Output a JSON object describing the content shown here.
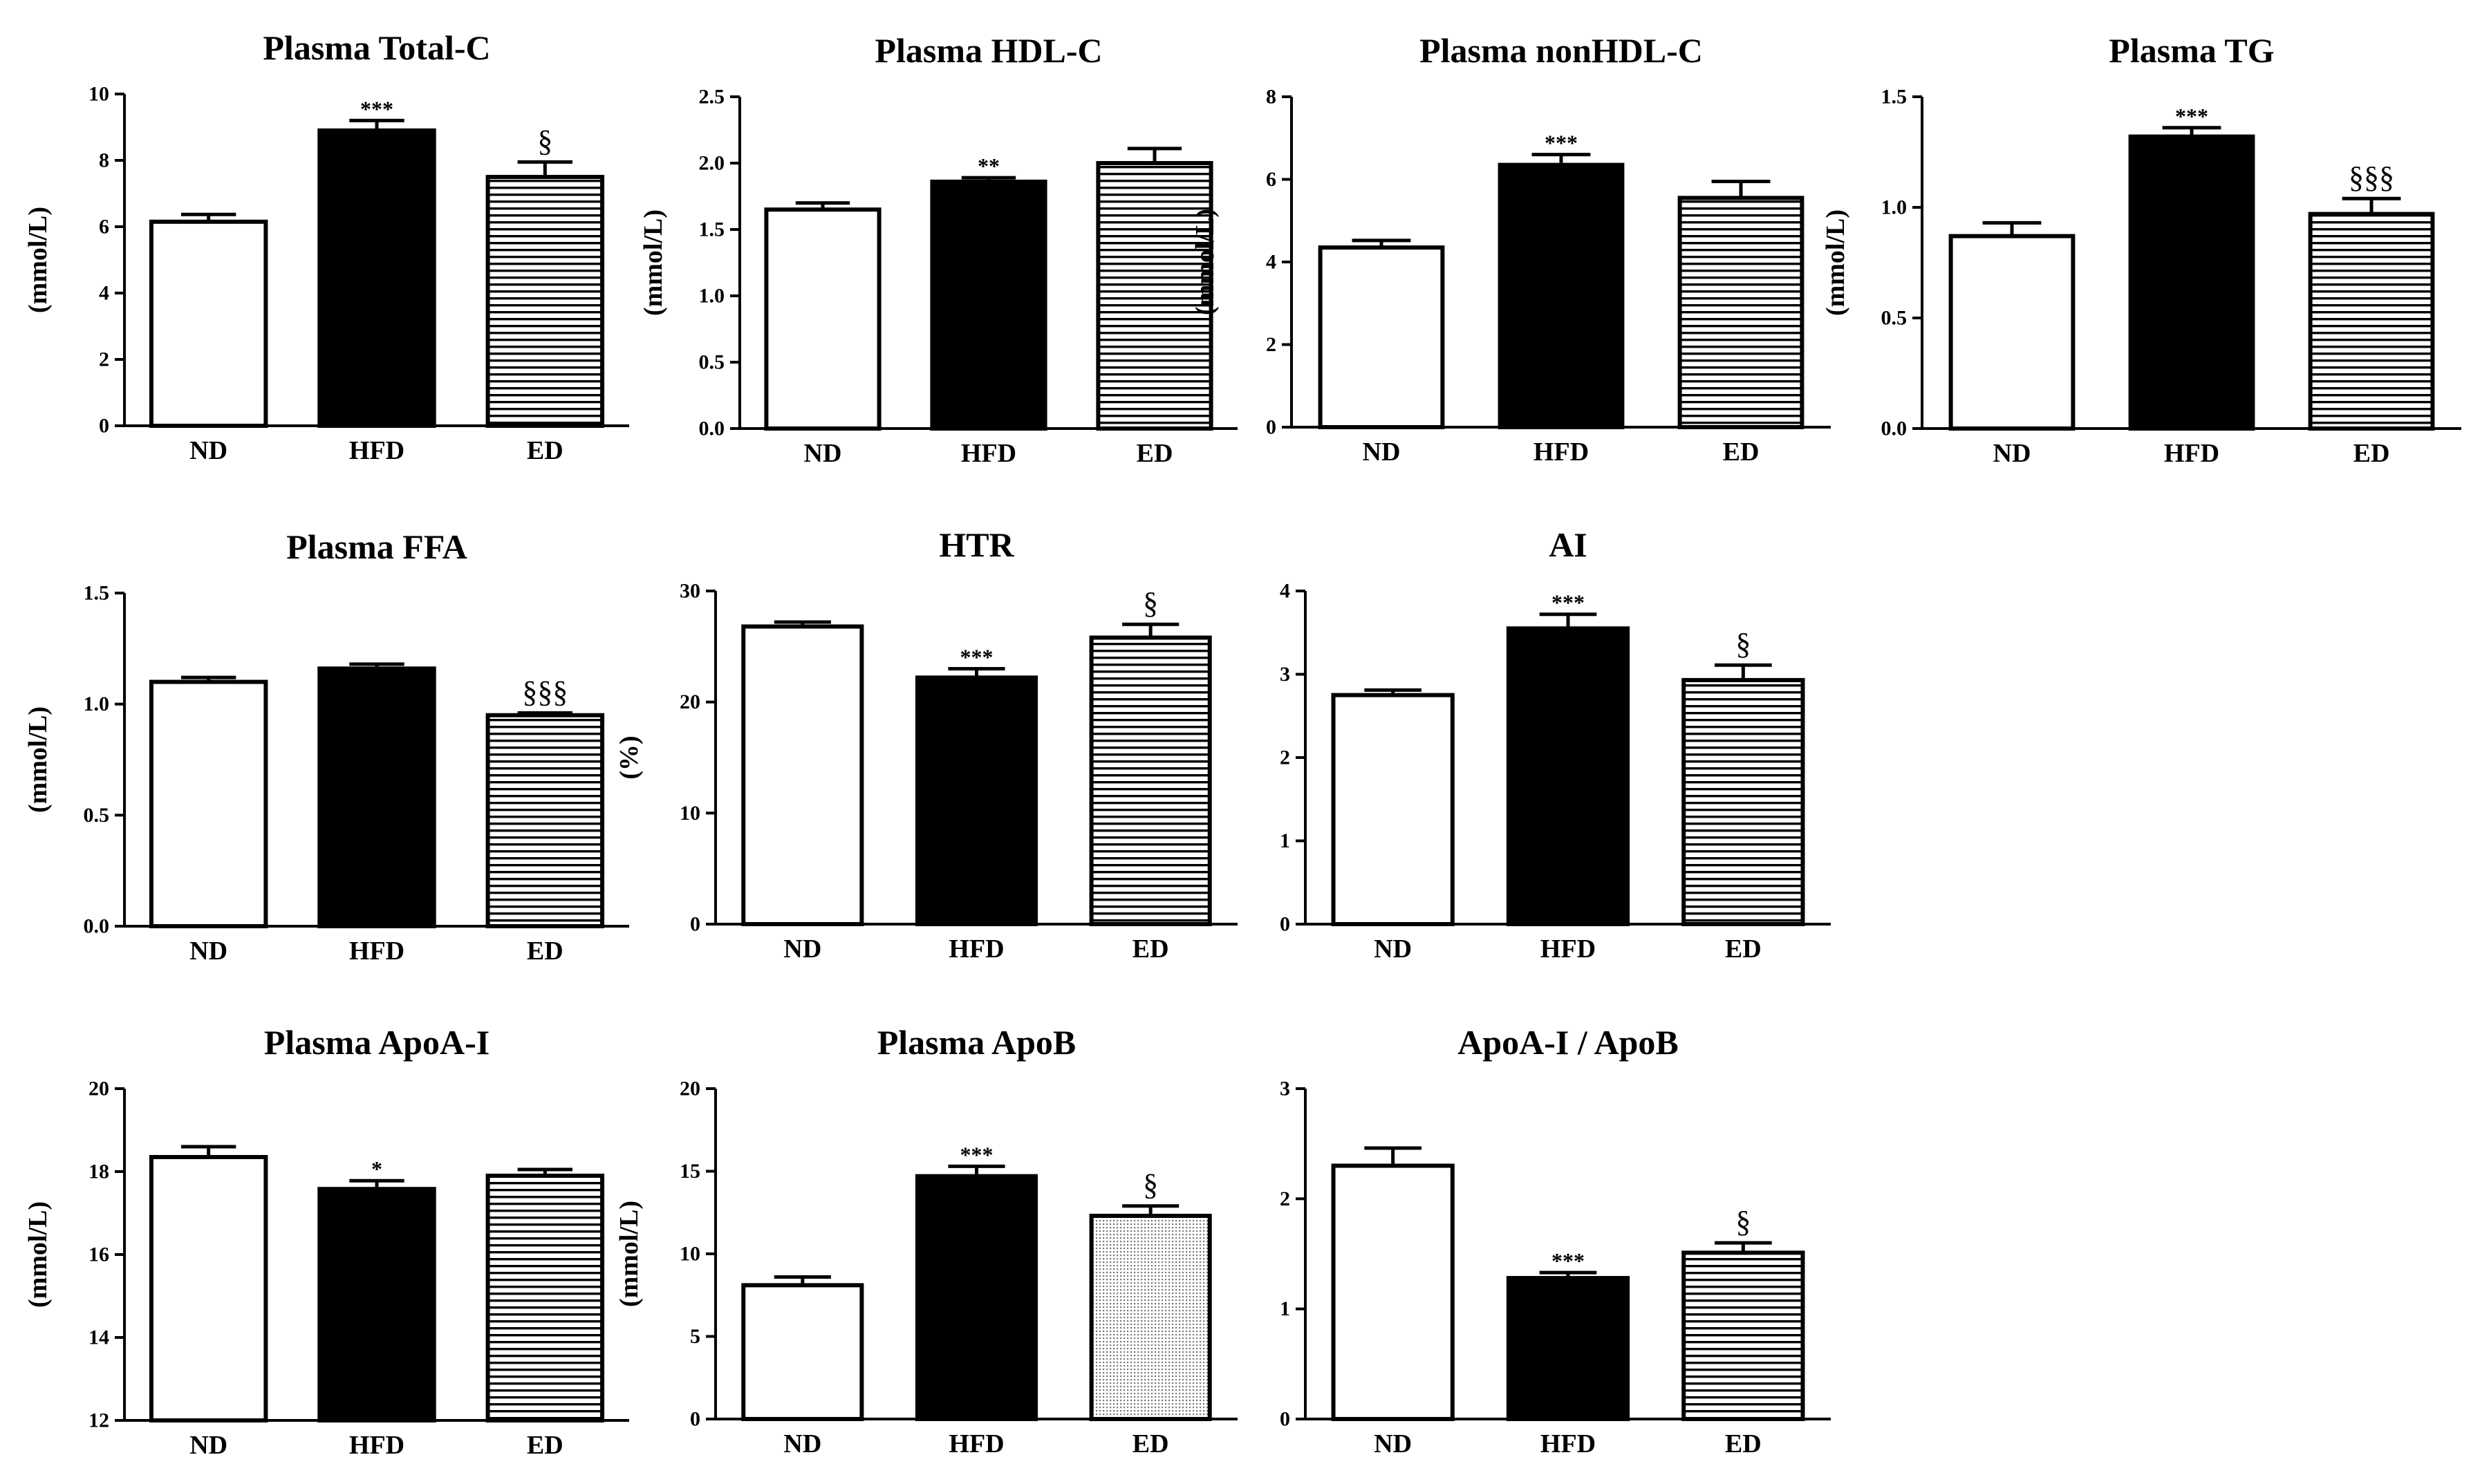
{
  "figure": {
    "background": "#ffffff",
    "ink": "#000000"
  },
  "chart_data": [
    {
      "type": "bar",
      "title": "Plasma Total-C",
      "ylabel": "(mmol/L)",
      "xlabel": "",
      "categories": [
        "ND",
        "HFD",
        "ED"
      ],
      "values": [
        6.15,
        8.9,
        7.5
      ],
      "errors": [
        0.22,
        0.3,
        0.45
      ],
      "ylim": [
        0,
        10
      ],
      "yticks": [
        "0",
        "2",
        "4",
        "6",
        "8",
        "10"
      ],
      "annotations": [
        "",
        "***",
        "§"
      ],
      "fills": [
        "open",
        "solid",
        "hlines"
      ]
    },
    {
      "type": "bar",
      "title": "Plasma HDL-C",
      "ylabel": "(mmol/L)",
      "xlabel": "",
      "categories": [
        "ND",
        "HFD",
        "ED"
      ],
      "values": [
        1.65,
        1.86,
        2.0
      ],
      "errors": [
        0.05,
        0.03,
        0.11
      ],
      "ylim": [
        0,
        2.5
      ],
      "yticks": [
        "0.0",
        "0.5",
        "1.0",
        "1.5",
        "2.0",
        "2.5"
      ],
      "annotations": [
        "",
        "**",
        ""
      ],
      "fills": [
        "open",
        "solid",
        "hlines"
      ]
    },
    {
      "type": "bar",
      "title": "Plasma nonHDL-C",
      "ylabel": "(mmol/L)",
      "xlabel": "",
      "categories": [
        "ND",
        "HFD",
        "ED"
      ],
      "values": [
        4.35,
        6.35,
        5.55
      ],
      "errors": [
        0.17,
        0.25,
        0.4
      ],
      "ylim": [
        0,
        8
      ],
      "yticks": [
        "0",
        "2",
        "4",
        "6",
        "8"
      ],
      "annotations": [
        "",
        "***",
        ""
      ],
      "fills": [
        "open",
        "solid",
        "hlines"
      ]
    },
    {
      "type": "bar",
      "title": "Plasma TG",
      "ylabel": "(mmol/L)",
      "xlabel": "",
      "categories": [
        "ND",
        "HFD",
        "ED"
      ],
      "values": [
        0.87,
        1.32,
        0.97
      ],
      "errors": [
        0.06,
        0.04,
        0.07
      ],
      "ylim": [
        0,
        1.5
      ],
      "yticks": [
        "0.0",
        "0.5",
        "1.0",
        "1.5"
      ],
      "annotations": [
        "",
        "***",
        "§§§"
      ],
      "fills": [
        "open",
        "solid",
        "hlines"
      ]
    },
    {
      "type": "bar",
      "title": "Plasma FFA",
      "ylabel": "(mmol/L)",
      "xlabel": "",
      "categories": [
        "ND",
        "HFD",
        "ED"
      ],
      "values": [
        1.1,
        1.16,
        0.95
      ],
      "errors": [
        0.02,
        0.02,
        0.01
      ],
      "ylim": [
        0,
        1.5
      ],
      "yticks": [
        "0.0",
        "0.5",
        "1.0",
        "1.5"
      ],
      "annotations": [
        "",
        "",
        "§§§"
      ],
      "fills": [
        "open",
        "solid",
        "hlines"
      ]
    },
    {
      "type": "bar",
      "title": "HTR",
      "ylabel": "(%)",
      "xlabel": "",
      "categories": [
        "ND",
        "HFD",
        "ED"
      ],
      "values": [
        26.8,
        22.2,
        25.8
      ],
      "errors": [
        0.4,
        0.8,
        1.2
      ],
      "ylim": [
        0,
        30
      ],
      "yticks": [
        "0",
        "10",
        "20",
        "30"
      ],
      "annotations": [
        "",
        "***",
        "§"
      ],
      "fills": [
        "open",
        "solid",
        "hlines"
      ]
    },
    {
      "type": "bar",
      "title": "AI",
      "ylabel": "",
      "xlabel": "",
      "categories": [
        "ND",
        "HFD",
        "ED"
      ],
      "values": [
        2.75,
        3.55,
        2.93
      ],
      "errors": [
        0.06,
        0.17,
        0.18
      ],
      "ylim": [
        0,
        4
      ],
      "yticks": [
        "0",
        "1",
        "2",
        "3",
        "4"
      ],
      "annotations": [
        "",
        "***",
        "§"
      ],
      "fills": [
        "open",
        "solid",
        "hlines"
      ]
    },
    {
      "type": "bar",
      "title": "Plasma ApoA-I",
      "ylabel": "(mmol/L)",
      "xlabel": "",
      "categories": [
        "ND",
        "HFD",
        "ED"
      ],
      "values": [
        18.35,
        17.58,
        17.9
      ],
      "errors": [
        0.25,
        0.2,
        0.15
      ],
      "ylim": [
        12,
        20
      ],
      "yticks": [
        "12",
        "14",
        "16",
        "18",
        "20"
      ],
      "annotations": [
        "",
        "*",
        ""
      ],
      "fills": [
        "open",
        "solid",
        "hlines"
      ]
    },
    {
      "type": "bar",
      "title": "Plasma ApoB",
      "ylabel": "(mmol/L)",
      "xlabel": "",
      "categories": [
        "ND",
        "HFD",
        "ED"
      ],
      "values": [
        8.1,
        14.7,
        12.3
      ],
      "errors": [
        0.5,
        0.6,
        0.6
      ],
      "ylim": [
        0,
        20
      ],
      "yticks": [
        "0",
        "5",
        "10",
        "15",
        "20"
      ],
      "annotations": [
        "",
        "***",
        "§"
      ],
      "fills": [
        "open",
        "solid",
        "dots"
      ]
    },
    {
      "type": "bar",
      "title": "ApoA-I / ApoB",
      "ylabel": "",
      "xlabel": "",
      "categories": [
        "ND",
        "HFD",
        "ED"
      ],
      "values": [
        2.3,
        1.28,
        1.51
      ],
      "errors": [
        0.16,
        0.05,
        0.09
      ],
      "ylim": [
        0,
        3
      ],
      "yticks": [
        "0",
        "1",
        "2",
        "3"
      ],
      "annotations": [
        "",
        "***",
        "§"
      ],
      "fills": [
        "open",
        "solid",
        "hlines"
      ]
    }
  ]
}
